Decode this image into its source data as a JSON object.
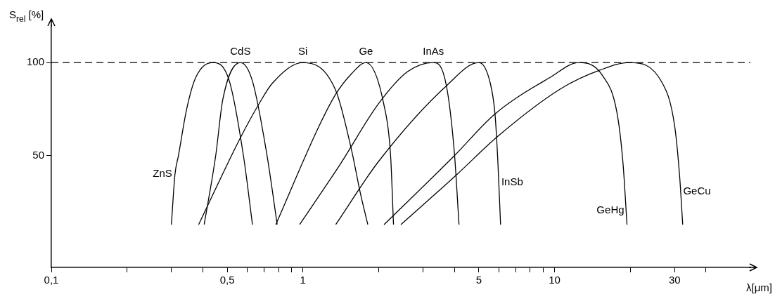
{
  "chart_data": {
    "type": "line",
    "xlabel": "λ[μm]",
    "ylabel": "S$_{rel}$ [%]",
    "log": "x",
    "grid": false,
    "legend": false,
    "marker": "none",
    "line_style": "solid",
    "xlim": [
      0.1,
      60
    ],
    "ylim": [
      -10,
      120
    ],
    "xticks": [
      {
        "value": 0.1,
        "label": "0,1"
      },
      {
        "value": 0.2,
        "label": null
      },
      {
        "value": 0.3,
        "label": null
      },
      {
        "value": 0.4,
        "label": null
      },
      {
        "value": 0.5,
        "label": "0,5"
      },
      {
        "value": 0.6,
        "label": null
      },
      {
        "value": 0.7,
        "label": null
      },
      {
        "value": 0.8,
        "label": null
      },
      {
        "value": 0.9,
        "label": null
      },
      1,
      {
        "value": 2,
        "label": null
      },
      {
        "value": 3,
        "label": null
      },
      {
        "value": 4,
        "label": null
      },
      5,
      {
        "value": 6,
        "label": null
      },
      {
        "value": 7,
        "label": null
      },
      {
        "value": 8,
        "label": null
      },
      {
        "value": 9,
        "label": null
      },
      10,
      {
        "value": 20,
        "label": null
      },
      30,
      {
        "value": 40,
        "label": null
      }
    ],
    "yticks": [
      50,
      100
    ],
    "ref_lines": [
      {
        "axis": "y",
        "value": 100,
        "line_style": "dashed",
        "color": "#000000"
      }
    ],
    "series": [
      {
        "name": "ZnS",
        "color": "#000000",
        "x": [
          0.3,
          0.31,
          0.32,
          0.345,
          0.375,
          0.44,
          0.51,
          0.58,
          0.63
        ],
        "values": [
          13,
          40,
          50,
          75,
          92,
          100,
          90,
          50,
          13
        ]
      },
      {
        "name": "CdS",
        "color": "#000000",
        "x": [
          0.405,
          0.45,
          0.48,
          0.564,
          0.63,
          0.72,
          0.79
        ],
        "values": [
          13,
          50,
          80,
          100,
          90,
          50,
          13
        ]
      },
      {
        "name": "Si",
        "color": "#000000",
        "x": [
          0.385,
          0.566,
          0.67,
          0.757,
          1.0,
          1.35,
          1.56,
          1.69,
          1.81
        ],
        "values": [
          13,
          60,
          78,
          89,
          100,
          85,
          53,
          30,
          13
        ]
      },
      {
        "name": "Ge",
        "color": "#000000",
        "x": [
          0.78,
          1.16,
          1.35,
          1.56,
          1.78,
          2.1,
          2.23,
          2.29
        ],
        "values": [
          13,
          66,
          83,
          94,
          100,
          77,
          50,
          13
        ]
      },
      {
        "name": "InAs",
        "color": "#000000",
        "x": [
          0.97,
          1.4,
          2.0,
          2.6,
          3.3,
          3.71,
          4.0,
          4.17
        ],
        "values": [
          13,
          45,
          78,
          95,
          100,
          88,
          51,
          13
        ]
      },
      {
        "name": "InSb",
        "color": "#000000",
        "x": [
          1.35,
          2.0,
          3.75,
          5.0,
          5.55,
          5.8,
          5.95,
          6.1
        ],
        "values": [
          13,
          47,
          88,
          100,
          89,
          72,
          47,
          13
        ]
      },
      {
        "name": "GeHg",
        "color": "#000000",
        "x": [
          2.1,
          4.0,
          5.75,
          9.6,
          12.5,
          15.5,
          17.7,
          18.7,
          19.4
        ],
        "values": [
          13,
          50,
          72,
          92,
          100,
          93,
          73,
          46,
          13
        ]
      },
      {
        "name": "GeCu",
        "color": "#000000",
        "x": [
          2.45,
          4.1,
          5.9,
          10.6,
          15.2,
          19.8,
          26.8,
          30,
          31.4,
          32.3
        ],
        "values": [
          13,
          40,
          60,
          86,
          96,
          100,
          89,
          66,
          39,
          13
        ]
      }
    ]
  }
}
